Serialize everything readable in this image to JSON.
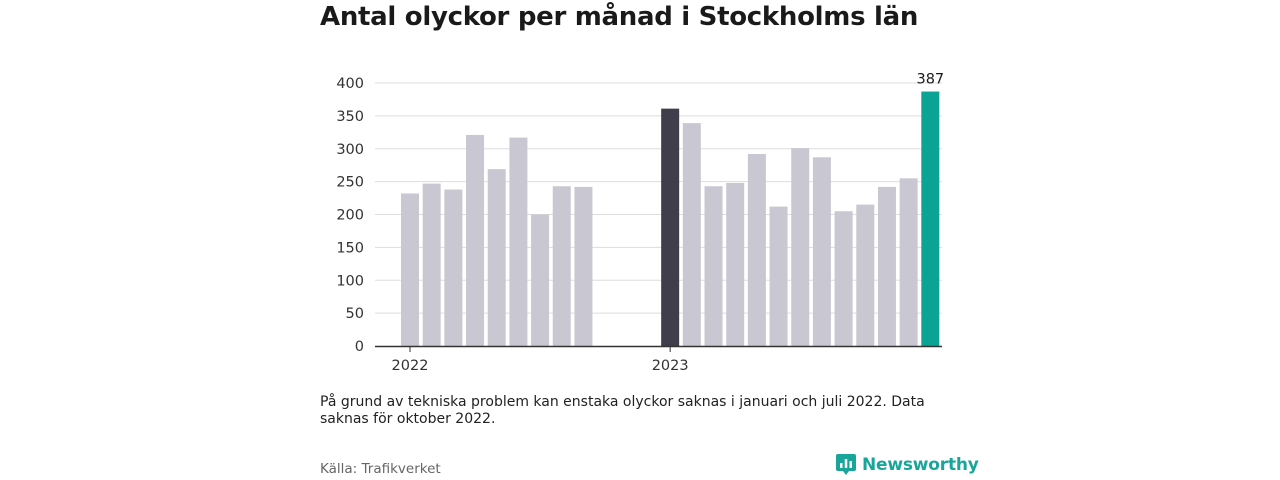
{
  "title": "Antal olyckor per månad i Stockholms län",
  "footnote": "På grund av tekniska problem kan enstaka olyckor saknas i januari och juli 2022. Data saknas för oktober 2022.",
  "source": "Källa: Trafikverket",
  "brand": {
    "name": "Newsworthy",
    "icon": "bar-chart-speech-bubble-icon",
    "color": "#1aa59a"
  },
  "colors": {
    "default": "#c9c8d2",
    "highlight_jan": "#3f3e4a",
    "highlight_latest": "#0aa394",
    "grid": "#dddddd",
    "axis": "#333333"
  },
  "chart_data": {
    "type": "bar",
    "xlabel": "",
    "ylabel": "",
    "ylim": [
      0,
      400
    ],
    "yticks": [
      0,
      50,
      100,
      150,
      200,
      250,
      300,
      350,
      400
    ],
    "grid": true,
    "x_tick_labels": [
      {
        "label": "2022",
        "category": "2022-01"
      },
      {
        "label": "2023",
        "category": "2023-01"
      }
    ],
    "categories": [
      "2022-01",
      "2022-02",
      "2022-03",
      "2022-04",
      "2022-05",
      "2022-06",
      "2022-07",
      "2022-08",
      "2022-09",
      "2022-10",
      "2022-11",
      "2022-12",
      "2023-01",
      "2023-02",
      "2023-03",
      "2023-04",
      "2023-05",
      "2023-06",
      "2023-07",
      "2023-08",
      "2023-09",
      "2023-10",
      "2023-11",
      "2023-12",
      "2024-01"
    ],
    "values": [
      232,
      247,
      238,
      321,
      269,
      317,
      200,
      243,
      242,
      null,
      null,
      null,
      361,
      339,
      243,
      248,
      292,
      212,
      301,
      287,
      205,
      215,
      242,
      255,
      387
    ],
    "highlight": {
      "2023-01": "highlight_jan",
      "2024-01": "highlight_latest"
    },
    "data_labels": [
      {
        "category": "2024-01",
        "text": "387"
      }
    ]
  }
}
